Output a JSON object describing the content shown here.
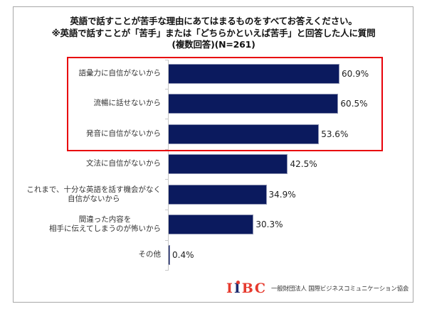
{
  "title": {
    "line1": "英語で話すことが苦手な理由にあてはまるものをすべてお答えください。",
    "line2": "※英語で話すことが「苦手」または「どちらかといえば苦手」と回答した人に質問",
    "line3": "(複数回答)(N=261)"
  },
  "colors": {
    "bar": "#0b1a5e",
    "highlight_box": "#e8000a",
    "logo_red": "#e63a2e",
    "logo_navy": "#1c2a6e"
  },
  "chart_data": {
    "type": "bar",
    "orientation": "horizontal",
    "title": "英語で話すことが苦手な理由にあてはまるものをすべてお答えください。 ※英語で話すことが「苦手」または「どちらかといえば苦手」と回答した人に質問 (複数回答)(N=261)",
    "xlabel": "",
    "ylabel": "",
    "unit": "%",
    "n": 261,
    "grid": false,
    "legend": null,
    "categories": [
      "語彙力に自信がないから",
      "流暢に話せないから",
      "発音に自信がないから",
      "文法に自信がないから",
      "これまで、十分な英語を話す機会がなく自信がないから",
      "間違った内容を相手に伝えてしまうのが怖いから",
      "その他"
    ],
    "values": [
      60.9,
      60.5,
      53.6,
      42.5,
      34.9,
      30.3,
      0.4
    ],
    "data_labels": [
      "60.9%",
      "60.5%",
      "53.6%",
      "42.5%",
      "34.9%",
      "30.3%",
      "0.4%"
    ],
    "annotations": [
      {
        "type": "highlight_box",
        "color": "#e8000a",
        "covers_categories": [
          0,
          1,
          2
        ]
      }
    ],
    "xlim": [
      0,
      100
    ]
  },
  "bars": [
    {
      "label_lines": [
        "語彙力に自信がないから"
      ],
      "value_label": "60.9%"
    },
    {
      "label_lines": [
        "流暢に話せないから"
      ],
      "value_label": "60.5%"
    },
    {
      "label_lines": [
        "発音に自信がないから"
      ],
      "value_label": "53.6%"
    },
    {
      "label_lines": [
        "文法に自信がないから"
      ],
      "value_label": "42.5%"
    },
    {
      "label_lines": [
        "これまで、十分な英語を話す機会がなく",
        "自信がないから"
      ],
      "value_label": "34.9%"
    },
    {
      "label_lines": [
        "間違った内容を",
        "相手に伝えてしまうのが怖いから"
      ],
      "value_label": "30.3%"
    },
    {
      "label_lines": [
        "その他"
      ],
      "value_label": "0.4%"
    }
  ],
  "logo": {
    "mark": [
      "I",
      "I",
      "B",
      "C"
    ],
    "org_name": "一般財団法人 国際ビジネスコミュニケーション協会"
  }
}
